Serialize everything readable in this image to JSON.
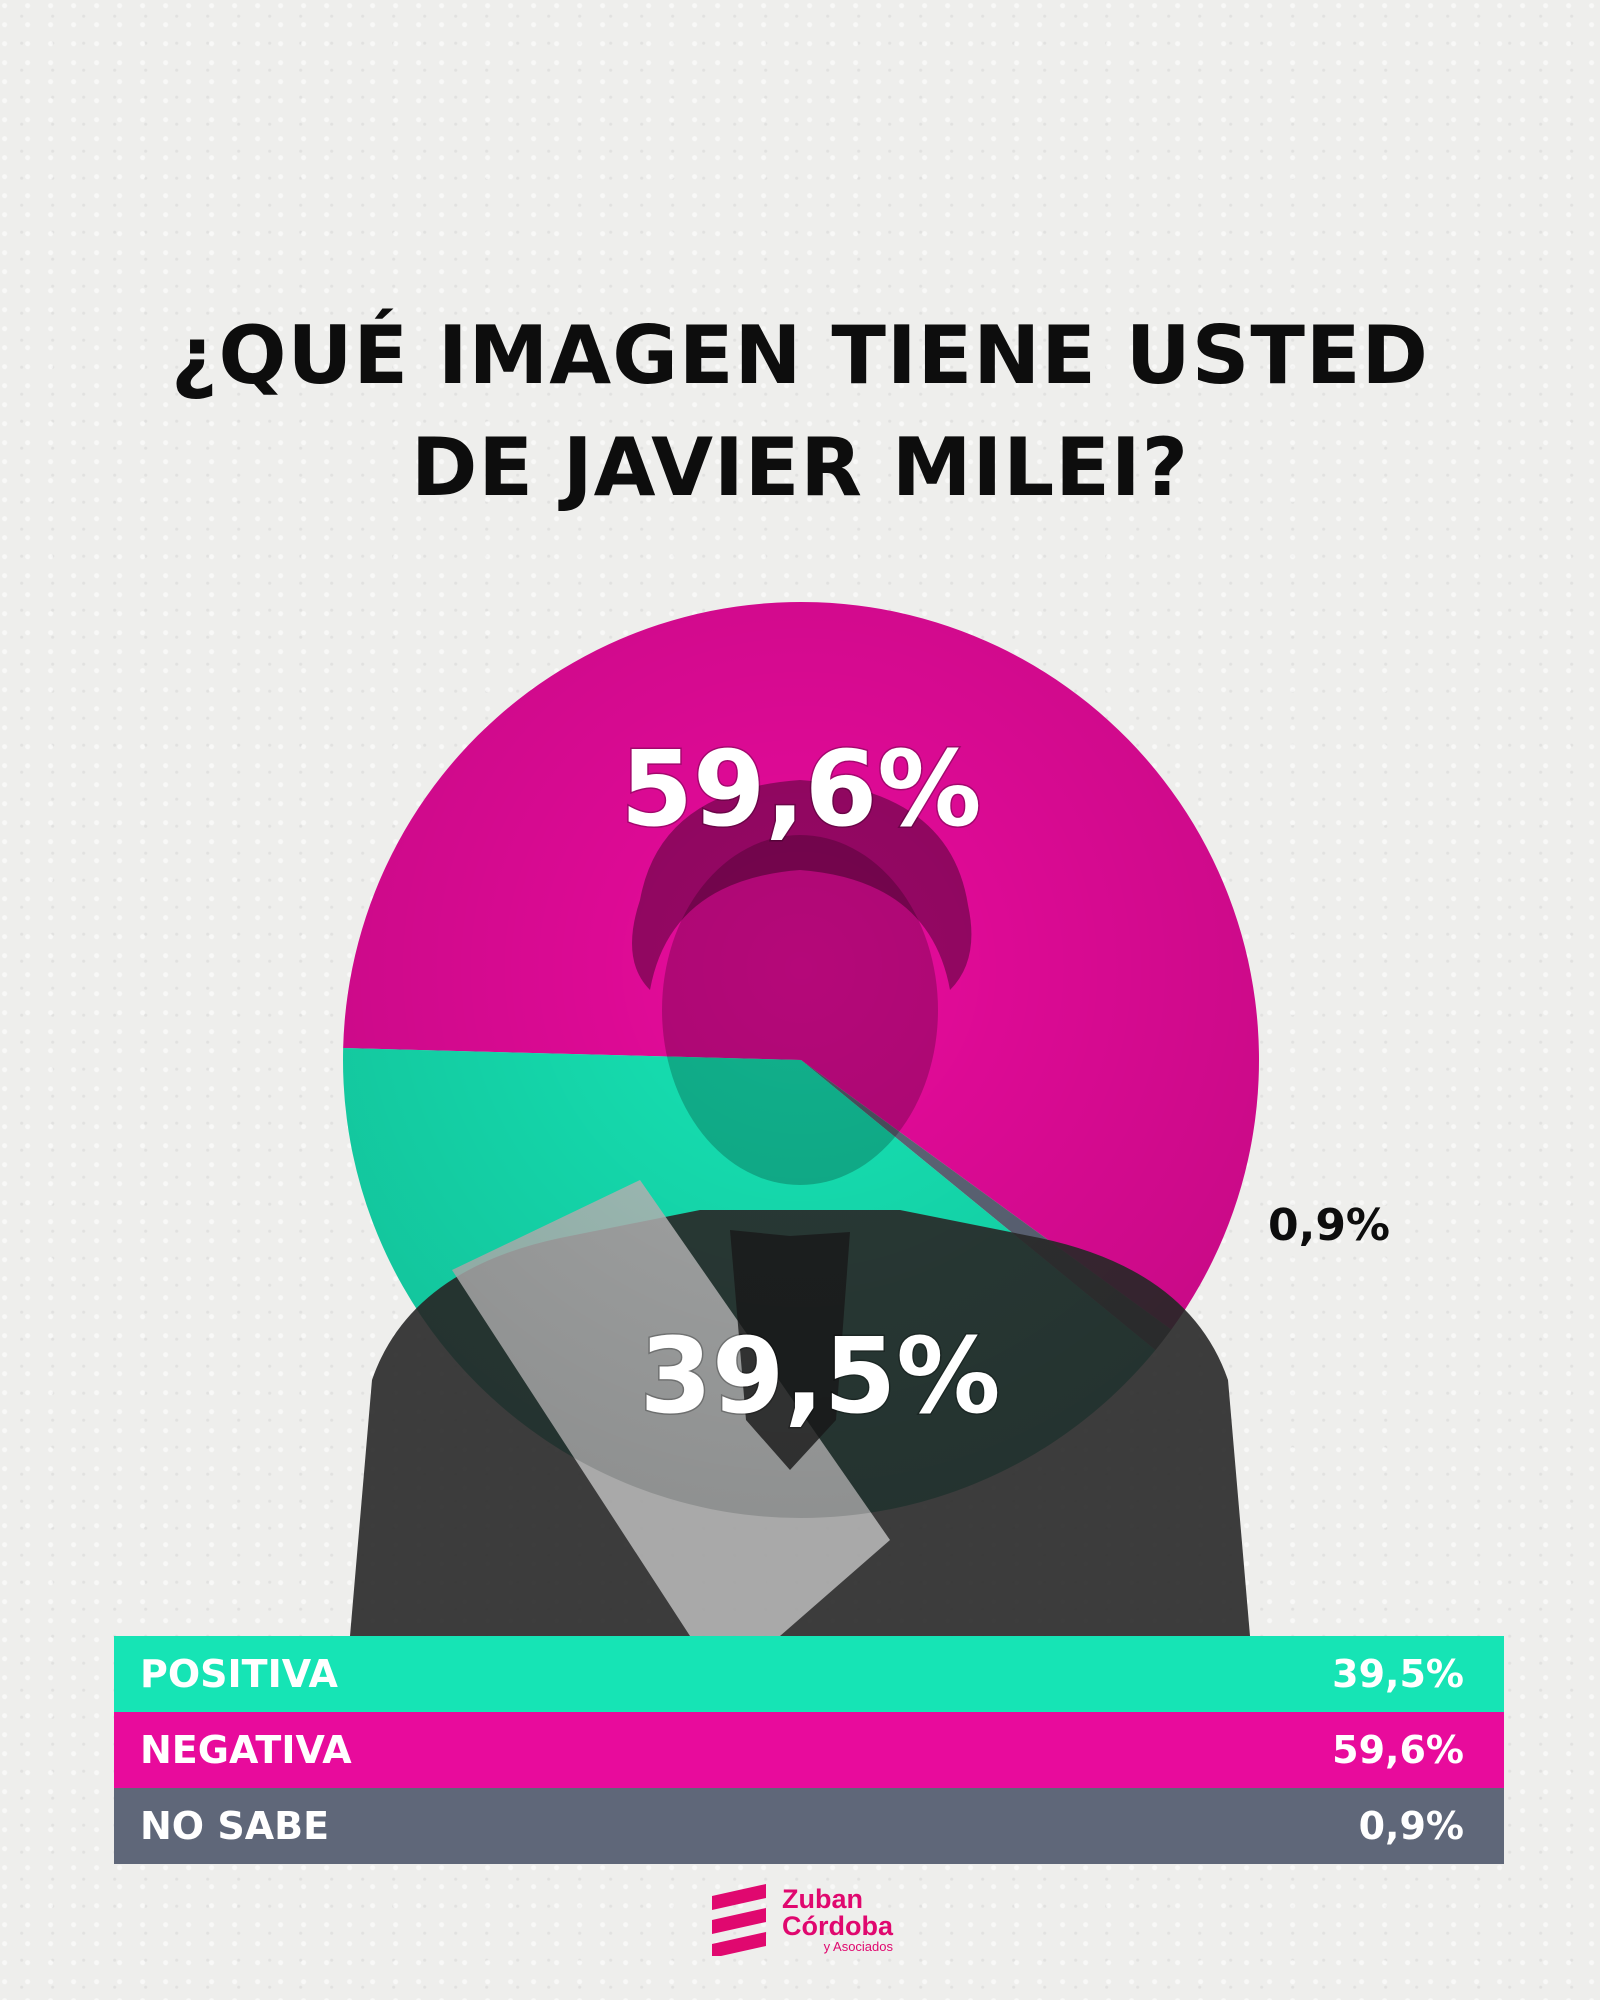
{
  "title": {
    "line1": "¿QUÉ IMAGEN TIENE USTED",
    "line2": "DE JAVIER MILEI?"
  },
  "colors": {
    "positiva": "#16e4b5",
    "negativa": "#e80b9c",
    "no_sabe": "#5f6779"
  },
  "chart_data": {
    "type": "pie",
    "labels": [
      "POSITIVA",
      "NEGATIVA",
      "NO SABE"
    ],
    "values": [
      39.5,
      59.6,
      0.9
    ],
    "value_labels": [
      "39,5%",
      "59,6%",
      "0,9%"
    ]
  },
  "legend": [
    {
      "label": "POSITIVA",
      "value": "39,5%",
      "color": "#16e4b5"
    },
    {
      "label": "NEGATIVA",
      "value": "59,6%",
      "color": "#e80b9c"
    },
    {
      "label": "NO SABE",
      "value": "0,9%",
      "color": "#5f6779"
    }
  ],
  "logo": {
    "line1": "Zuban",
    "line2": "Córdoba",
    "line3": "y Asociados"
  }
}
